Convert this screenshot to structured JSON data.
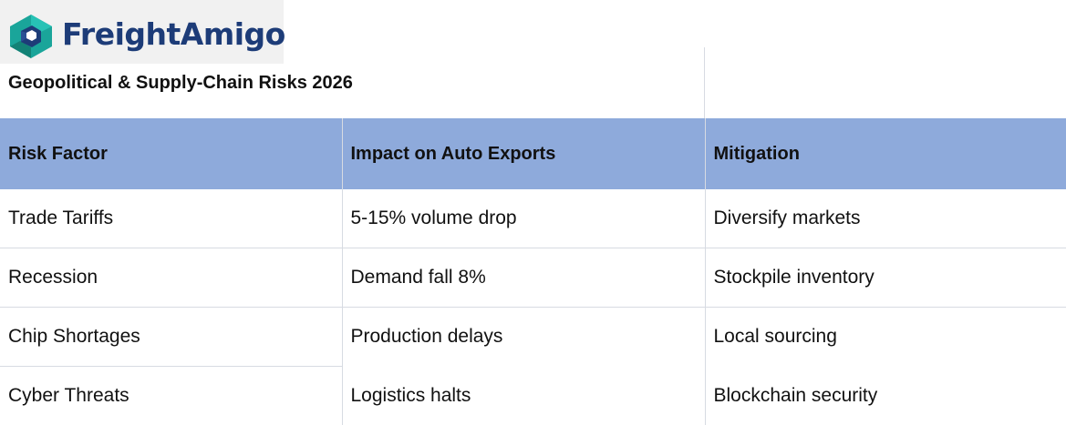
{
  "brand": {
    "logo_icon": "freightamigo-logo-icon",
    "name": "FreightAmigo",
    "color": "#1d3c78",
    "accent_green": "#1aa59a"
  },
  "page": {
    "title": "Geopolitical & Supply-Chain Risks 2026"
  },
  "table": {
    "header_color": "#8eaadb",
    "headers": [
      "Risk Factor",
      "Impact on Auto Exports",
      "Mitigation"
    ],
    "rows": [
      [
        "Trade Tariffs",
        "5-15% volume drop",
        "Diversify markets"
      ],
      [
        "Recession",
        "Demand fall 8%",
        "Stockpile inventory"
      ],
      [
        "Chip Shortages",
        "Production delays",
        "Local sourcing"
      ],
      [
        "Cyber Threats",
        "Logistics halts",
        "Blockchain security"
      ]
    ]
  }
}
